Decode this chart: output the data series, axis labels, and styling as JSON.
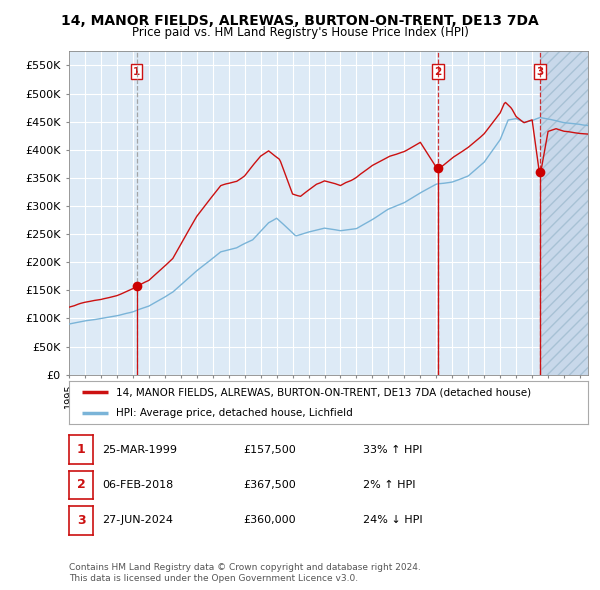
{
  "title": "14, MANOR FIELDS, ALREWAS, BURTON-ON-TRENT, DE13 7DA",
  "subtitle": "Price paid vs. HM Land Registry's House Price Index (HPI)",
  "legend_property": "14, MANOR FIELDS, ALREWAS, BURTON-ON-TRENT, DE13 7DA (detached house)",
  "legend_hpi": "HPI: Average price, detached house, Lichfield",
  "ytick_labels": [
    "£0",
    "£50K",
    "£100K",
    "£150K",
    "£200K",
    "£250K",
    "£300K",
    "£350K",
    "£400K",
    "£450K",
    "£500K",
    "£550K"
  ],
  "ytick_values": [
    0,
    50000,
    100000,
    150000,
    200000,
    250000,
    300000,
    350000,
    400000,
    450000,
    500000,
    550000
  ],
  "ylim": [
    0,
    575000
  ],
  "xlim_start": 1995.0,
  "xlim_end": 2027.5,
  "sale_dates": [
    1999.23,
    2018.09,
    2024.49
  ],
  "sale_prices": [
    157500,
    367500,
    360000
  ],
  "sale_labels": [
    "1",
    "2",
    "3"
  ],
  "hpi_color": "#7ab4d8",
  "property_color": "#cc1111",
  "sale_marker_color": "#cc0000",
  "chart_bg_color": "#ddeaf6",
  "hatch_bg_color": "#c8d8ea",
  "grid_color": "#ffffff",
  "footnote_line1": "Contains HM Land Registry data © Crown copyright and database right 2024.",
  "footnote_line2": "This data is licensed under the Open Government Licence v3.0.",
  "table_data": [
    {
      "num": "1",
      "date": "25-MAR-1999",
      "price": "£157,500",
      "hpi_rel": "33% ↑ HPI"
    },
    {
      "num": "2",
      "date": "06-FEB-2018",
      "price": "£367,500",
      "hpi_rel": "2% ↑ HPI"
    },
    {
      "num": "3",
      "date": "27-JUN-2024",
      "price": "£360,000",
      "hpi_rel": "24% ↓ HPI"
    }
  ]
}
